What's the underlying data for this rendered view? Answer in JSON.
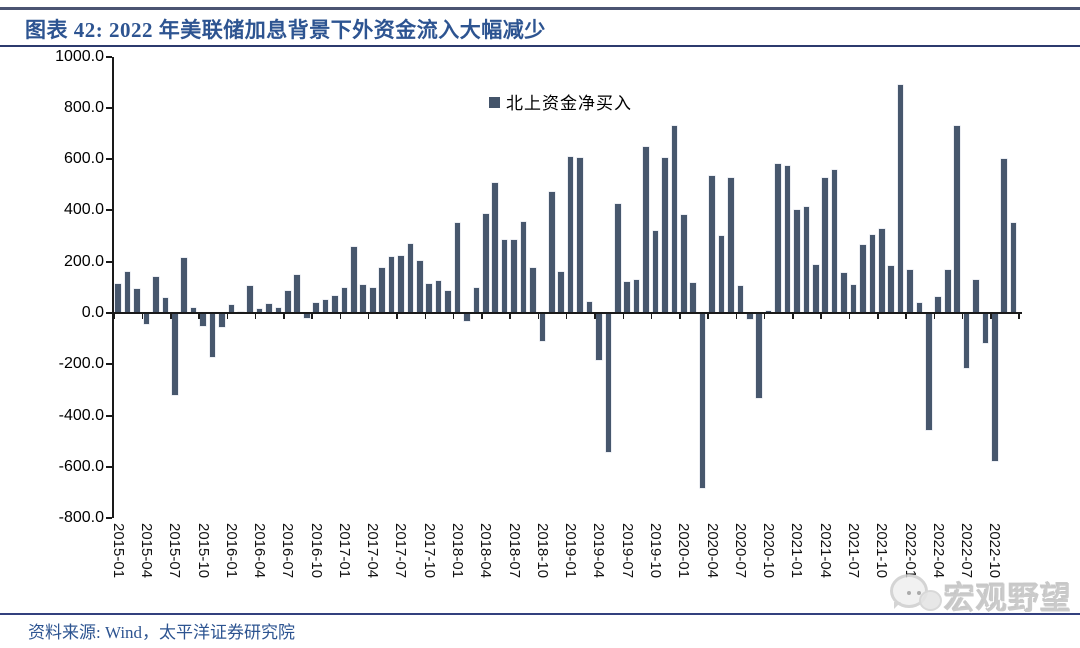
{
  "header": {
    "title": "图表 42: 2022 年美联储加息背景下外资金流入大幅减少"
  },
  "footer": {
    "source": "资料来源: Wind，太平洋证券研究院"
  },
  "watermark": {
    "text": "宏观野望"
  },
  "colors": {
    "bar": "#47576d",
    "title_blue": "#2d5491",
    "rule_navy": "#2c3a6e",
    "axis_black": "#1a1a1a",
    "watermark_gray": "#bdbdbd"
  },
  "chart_data": {
    "type": "bar",
    "title": "2022 年美联储加息背景下外资金流入大幅减少",
    "legend": [
      "北上资金净买入"
    ],
    "legend_position": "top-center-inside",
    "grid": false,
    "ylim": [
      -800,
      1000
    ],
    "y_ticks": [
      1000,
      800,
      600,
      400,
      200,
      0,
      -200,
      -400,
      -600,
      -800
    ],
    "y_tick_labels": [
      "1000.0",
      "800.0",
      "600.0",
      "400.0",
      "200.0",
      "0.0",
      "-200.0",
      "-400.0",
      "-600.0",
      "-800.0"
    ],
    "x_tick_step": 3,
    "x_tick_labels": [
      "2015-01",
      "2015-04",
      "2015-07",
      "2015-10",
      "2016-01",
      "2016-04",
      "2016-07",
      "2016-10",
      "2017-01",
      "2017-04",
      "2017-07",
      "2017-10",
      "2018-01",
      "2018-04",
      "2018-07",
      "2018-10",
      "2019-01",
      "2019-04",
      "2019-07",
      "2019-10",
      "2020-01",
      "2020-04",
      "2020-07",
      "2020-10",
      "2021-01",
      "2021-04",
      "2021-07",
      "2021-10",
      "2022-01",
      "2022-04",
      "2022-07",
      "2022-10"
    ],
    "x": [
      "2015-01",
      "2015-02",
      "2015-03",
      "2015-04",
      "2015-05",
      "2015-06",
      "2015-07",
      "2015-08",
      "2015-09",
      "2015-10",
      "2015-11",
      "2015-12",
      "2016-01",
      "2016-02",
      "2016-03",
      "2016-04",
      "2016-05",
      "2016-06",
      "2016-07",
      "2016-08",
      "2016-09",
      "2016-10",
      "2016-11",
      "2016-12",
      "2017-01",
      "2017-02",
      "2017-03",
      "2017-04",
      "2017-05",
      "2017-06",
      "2017-07",
      "2017-08",
      "2017-09",
      "2017-10",
      "2017-11",
      "2017-12",
      "2018-01",
      "2018-02",
      "2018-03",
      "2018-04",
      "2018-05",
      "2018-06",
      "2018-07",
      "2018-08",
      "2018-09",
      "2018-10",
      "2018-11",
      "2018-12",
      "2019-01",
      "2019-02",
      "2019-03",
      "2019-04",
      "2019-05",
      "2019-06",
      "2019-07",
      "2019-08",
      "2019-09",
      "2019-10",
      "2019-11",
      "2019-12",
      "2020-01",
      "2020-02",
      "2020-03",
      "2020-04",
      "2020-05",
      "2020-06",
      "2020-07",
      "2020-08",
      "2020-09",
      "2020-10",
      "2020-11",
      "2020-12",
      "2021-01",
      "2021-02",
      "2021-03",
      "2021-04",
      "2021-05",
      "2021-06",
      "2021-07",
      "2021-08",
      "2021-09",
      "2021-10",
      "2021-11",
      "2021-12",
      "2022-01",
      "2022-02",
      "2022-03",
      "2022-04",
      "2022-05",
      "2022-06",
      "2022-07",
      "2022-08",
      "2022-09",
      "2022-10",
      "2022-11",
      "2022-12"
    ],
    "series": [
      {
        "name": "北上资金净买入",
        "values": [
          112,
          158,
          95,
          -38,
          140,
          59,
          -315,
          213,
          18,
          -45,
          -168,
          -52,
          33,
          4,
          106,
          17,
          36,
          19,
          84,
          149,
          -17,
          39,
          52,
          67,
          96,
          256,
          109,
          97,
          175,
          217,
          221,
          268,
          204,
          115,
          124,
          84,
          351,
          -26,
          96,
          387,
          508,
          285,
          285,
          355,
          175,
          -106,
          470,
          160,
          607,
          604,
          44,
          -180,
          -537,
          426,
          121,
          130,
          647,
          321,
          604,
          730,
          384,
          116,
          -678,
          533,
          301,
          527,
          104,
          -21,
          -328,
          8,
          579,
          572,
          400,
          412,
          187,
          526,
          557,
          154,
          108,
          266,
          304,
          329,
          185,
          889,
          168,
          40,
          -451,
          63,
          169,
          730,
          -211,
          127,
          -112,
          -573,
          601,
          350
        ]
      }
    ]
  }
}
